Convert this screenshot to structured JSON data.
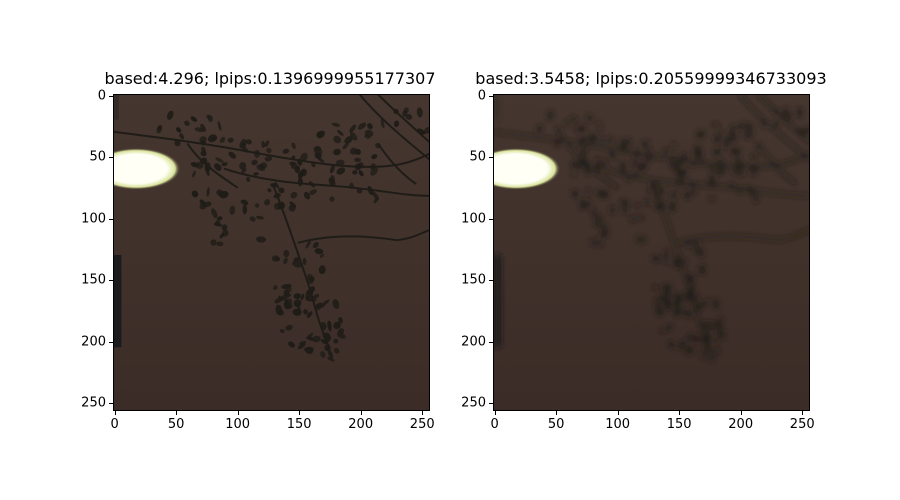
{
  "panels": [
    {
      "title": "based:4.296; lpips:0.1396999955177307",
      "xticks": [
        "0",
        "50",
        "100",
        "150",
        "200",
        "250"
      ],
      "yticks": [
        "0",
        "50",
        "100",
        "150",
        "200",
        "250"
      ],
      "blur": 0
    },
    {
      "title": "based:3.5458; lpips:0.20559999346733093",
      "xticks": [
        "0",
        "50",
        "100",
        "150",
        "200",
        "250"
      ],
      "yticks": [
        "0",
        "50",
        "100",
        "150",
        "200",
        "250"
      ],
      "blur": 2.2
    }
  ],
  "tick_values": [
    0,
    50,
    100,
    150,
    200,
    250
  ],
  "image_size": 256,
  "colors": {
    "sky": "#45362f",
    "sky_lower": "#3c2c27",
    "foliage": "#1f1c17",
    "lamp_core": "#fffff5",
    "lamp_glow": "#d8e39a"
  }
}
